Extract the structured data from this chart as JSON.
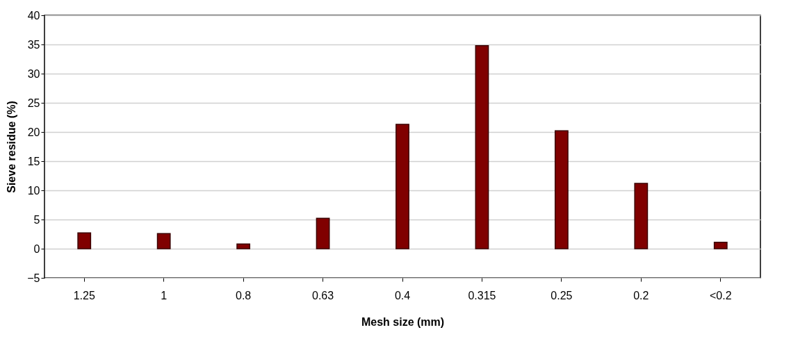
{
  "chart_data": {
    "type": "bar",
    "xlabel": "Mesh size (mm)",
    "ylabel": "Sieve residue (%)",
    "categories": [
      "1.25",
      "1",
      "0.8",
      "0.63",
      "0.4",
      "0.315",
      "0.25",
      "0.2",
      "<0.2"
    ],
    "values": [
      2.7,
      2.6,
      0.8,
      5.2,
      21.3,
      34.8,
      20.2,
      11.2,
      1.1
    ],
    "color": "#800000",
    "ylim": [
      -5,
      40
    ],
    "yticks": [
      -5,
      0,
      5,
      10,
      15,
      20,
      25,
      30,
      35,
      40
    ],
    "grid": "y"
  }
}
